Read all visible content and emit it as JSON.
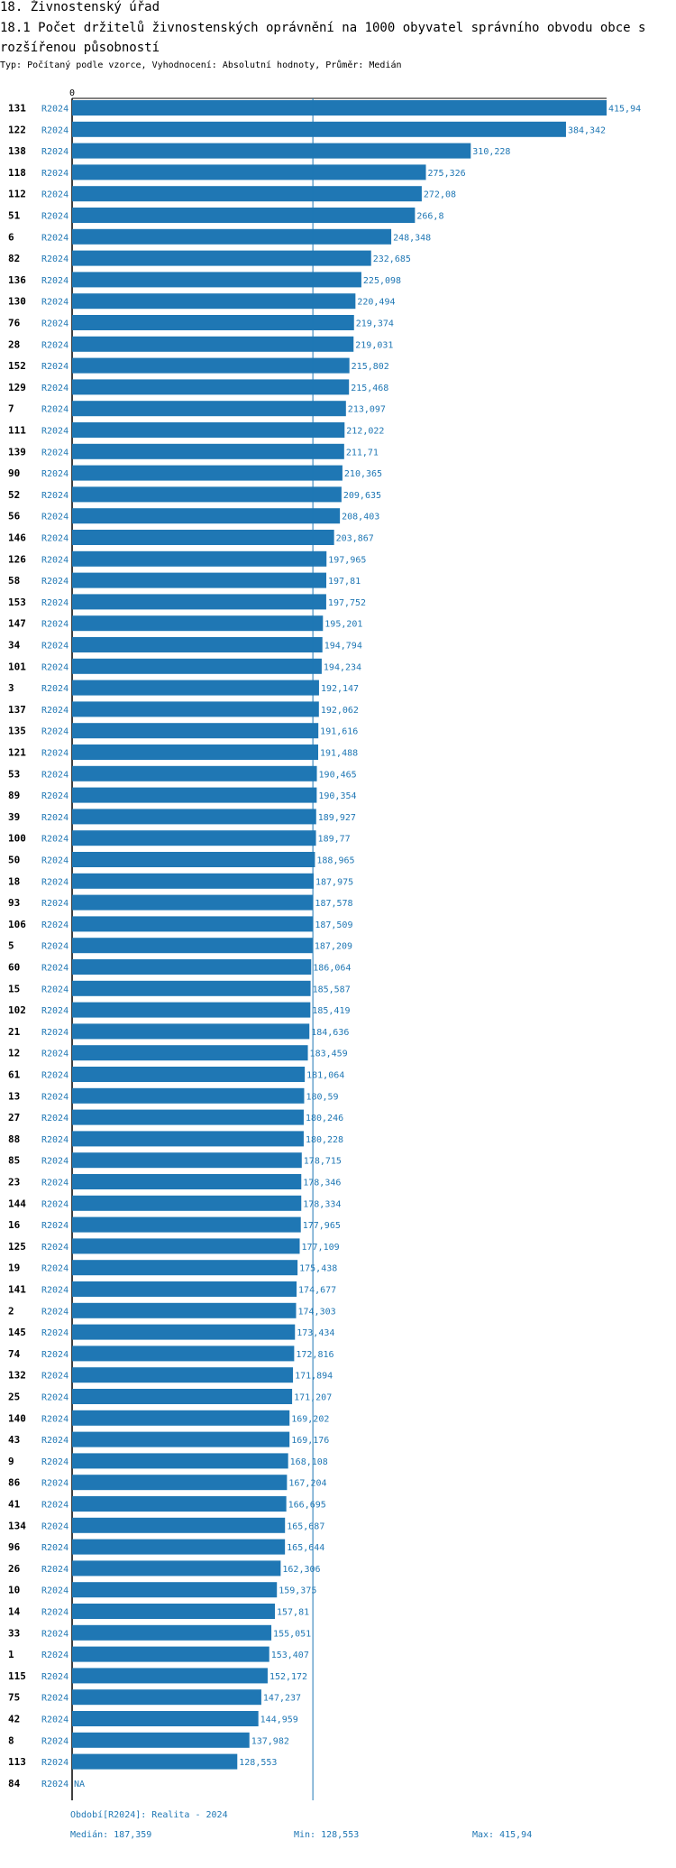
{
  "header": {
    "title": "18. Živnostenský úřad",
    "subtitle": "18.1 Počet držitelů živnostenských oprávnění na 1000 obyvatel správního obvodu obce s rozšířenou působností",
    "meta": "Typ: Počítaný podle vzorce, Vyhodnocení: Absolutní hodnoty, Průměr: Medián"
  },
  "chart_data": {
    "type": "bar",
    "orientation": "horizontal",
    "axis_zero_label": "0",
    "xlim": [
      0,
      415.94
    ],
    "median": 187.359,
    "rows": [
      {
        "id": "131",
        "period": "R2024",
        "value": 415.94,
        "label": "415,94"
      },
      {
        "id": "122",
        "period": "R2024",
        "value": 384.342,
        "label": "384,342"
      },
      {
        "id": "138",
        "period": "R2024",
        "value": 310.228,
        "label": "310,228"
      },
      {
        "id": "118",
        "period": "R2024",
        "value": 275.326,
        "label": "275,326"
      },
      {
        "id": "112",
        "period": "R2024",
        "value": 272.08,
        "label": "272,08"
      },
      {
        "id": "51",
        "period": "R2024",
        "value": 266.8,
        "label": "266,8"
      },
      {
        "id": "6",
        "period": "R2024",
        "value": 248.348,
        "label": "248,348"
      },
      {
        "id": "82",
        "period": "R2024",
        "value": 232.685,
        "label": "232,685"
      },
      {
        "id": "136",
        "period": "R2024",
        "value": 225.098,
        "label": "225,098"
      },
      {
        "id": "130",
        "period": "R2024",
        "value": 220.494,
        "label": "220,494"
      },
      {
        "id": "76",
        "period": "R2024",
        "value": 219.374,
        "label": "219,374"
      },
      {
        "id": "28",
        "period": "R2024",
        "value": 219.031,
        "label": "219,031"
      },
      {
        "id": "152",
        "period": "R2024",
        "value": 215.802,
        "label": "215,802"
      },
      {
        "id": "129",
        "period": "R2024",
        "value": 215.468,
        "label": "215,468"
      },
      {
        "id": "7",
        "period": "R2024",
        "value": 213.097,
        "label": "213,097"
      },
      {
        "id": "111",
        "period": "R2024",
        "value": 212.022,
        "label": "212,022"
      },
      {
        "id": "139",
        "period": "R2024",
        "value": 211.71,
        "label": "211,71"
      },
      {
        "id": "90",
        "period": "R2024",
        "value": 210.365,
        "label": "210,365"
      },
      {
        "id": "52",
        "period": "R2024",
        "value": 209.635,
        "label": "209,635"
      },
      {
        "id": "56",
        "period": "R2024",
        "value": 208.403,
        "label": "208,403"
      },
      {
        "id": "146",
        "period": "R2024",
        "value": 203.867,
        "label": "203,867"
      },
      {
        "id": "126",
        "period": "R2024",
        "value": 197.965,
        "label": "197,965"
      },
      {
        "id": "58",
        "period": "R2024",
        "value": 197.81,
        "label": "197,81"
      },
      {
        "id": "153",
        "period": "R2024",
        "value": 197.752,
        "label": "197,752"
      },
      {
        "id": "147",
        "period": "R2024",
        "value": 195.201,
        "label": "195,201"
      },
      {
        "id": "34",
        "period": "R2024",
        "value": 194.794,
        "label": "194,794"
      },
      {
        "id": "101",
        "period": "R2024",
        "value": 194.234,
        "label": "194,234"
      },
      {
        "id": "3",
        "period": "R2024",
        "value": 192.147,
        "label": "192,147"
      },
      {
        "id": "137",
        "period": "R2024",
        "value": 192.062,
        "label": "192,062"
      },
      {
        "id": "135",
        "period": "R2024",
        "value": 191.616,
        "label": "191,616"
      },
      {
        "id": "121",
        "period": "R2024",
        "value": 191.488,
        "label": "191,488"
      },
      {
        "id": "53",
        "period": "R2024",
        "value": 190.465,
        "label": "190,465"
      },
      {
        "id": "89",
        "period": "R2024",
        "value": 190.354,
        "label": "190,354"
      },
      {
        "id": "39",
        "period": "R2024",
        "value": 189.927,
        "label": "189,927"
      },
      {
        "id": "100",
        "period": "R2024",
        "value": 189.77,
        "label": "189,77"
      },
      {
        "id": "50",
        "period": "R2024",
        "value": 188.965,
        "label": "188,965"
      },
      {
        "id": "18",
        "period": "R2024",
        "value": 187.975,
        "label": "187,975"
      },
      {
        "id": "93",
        "period": "R2024",
        "value": 187.578,
        "label": "187,578"
      },
      {
        "id": "106",
        "period": "R2024",
        "value": 187.509,
        "label": "187,509"
      },
      {
        "id": "5",
        "period": "R2024",
        "value": 187.209,
        "label": "187,209"
      },
      {
        "id": "60",
        "period": "R2024",
        "value": 186.064,
        "label": "186,064"
      },
      {
        "id": "15",
        "period": "R2024",
        "value": 185.587,
        "label": "185,587"
      },
      {
        "id": "102",
        "period": "R2024",
        "value": 185.419,
        "label": "185,419"
      },
      {
        "id": "21",
        "period": "R2024",
        "value": 184.636,
        "label": "184,636"
      },
      {
        "id": "12",
        "period": "R2024",
        "value": 183.459,
        "label": "183,459"
      },
      {
        "id": "61",
        "period": "R2024",
        "value": 181.064,
        "label": "181,064"
      },
      {
        "id": "13",
        "period": "R2024",
        "value": 180.59,
        "label": "180,59"
      },
      {
        "id": "27",
        "period": "R2024",
        "value": 180.246,
        "label": "180,246"
      },
      {
        "id": "88",
        "period": "R2024",
        "value": 180.228,
        "label": "180,228"
      },
      {
        "id": "85",
        "period": "R2024",
        "value": 178.715,
        "label": "178,715"
      },
      {
        "id": "23",
        "period": "R2024",
        "value": 178.346,
        "label": "178,346"
      },
      {
        "id": "144",
        "period": "R2024",
        "value": 178.334,
        "label": "178,334"
      },
      {
        "id": "16",
        "period": "R2024",
        "value": 177.965,
        "label": "177,965"
      },
      {
        "id": "125",
        "period": "R2024",
        "value": 177.109,
        "label": "177,109"
      },
      {
        "id": "19",
        "period": "R2024",
        "value": 175.438,
        "label": "175,438"
      },
      {
        "id": "141",
        "period": "R2024",
        "value": 174.677,
        "label": "174,677"
      },
      {
        "id": "2",
        "period": "R2024",
        "value": 174.303,
        "label": "174,303"
      },
      {
        "id": "145",
        "period": "R2024",
        "value": 173.434,
        "label": "173,434"
      },
      {
        "id": "74",
        "period": "R2024",
        "value": 172.816,
        "label": "172,816"
      },
      {
        "id": "132",
        "period": "R2024",
        "value": 171.894,
        "label": "171,894"
      },
      {
        "id": "25",
        "period": "R2024",
        "value": 171.207,
        "label": "171,207"
      },
      {
        "id": "140",
        "period": "R2024",
        "value": 169.202,
        "label": "169,202"
      },
      {
        "id": "43",
        "period": "R2024",
        "value": 169.176,
        "label": "169,176"
      },
      {
        "id": "9",
        "period": "R2024",
        "value": 168.108,
        "label": "168,108"
      },
      {
        "id": "86",
        "period": "R2024",
        "value": 167.204,
        "label": "167,204"
      },
      {
        "id": "41",
        "period": "R2024",
        "value": 166.695,
        "label": "166,695"
      },
      {
        "id": "134",
        "period": "R2024",
        "value": 165.687,
        "label": "165,687"
      },
      {
        "id": "96",
        "period": "R2024",
        "value": 165.644,
        "label": "165,644"
      },
      {
        "id": "26",
        "period": "R2024",
        "value": 162.306,
        "label": "162,306"
      },
      {
        "id": "10",
        "period": "R2024",
        "value": 159.375,
        "label": "159,375"
      },
      {
        "id": "14",
        "period": "R2024",
        "value": 157.81,
        "label": "157,81"
      },
      {
        "id": "33",
        "period": "R2024",
        "value": 155.051,
        "label": "155,051"
      },
      {
        "id": "1",
        "period": "R2024",
        "value": 153.407,
        "label": "153,407"
      },
      {
        "id": "115",
        "period": "R2024",
        "value": 152.172,
        "label": "152,172"
      },
      {
        "id": "75",
        "period": "R2024",
        "value": 147.237,
        "label": "147,237"
      },
      {
        "id": "42",
        "period": "R2024",
        "value": 144.959,
        "label": "144,959"
      },
      {
        "id": "8",
        "period": "R2024",
        "value": 137.982,
        "label": "137,982"
      },
      {
        "id": "113",
        "period": "R2024",
        "value": 128.553,
        "label": "128,553"
      },
      {
        "id": "84",
        "period": "R2024",
        "value": null,
        "label": "NA"
      }
    ]
  },
  "footer": {
    "period_text": "Období[R2024]: Realita - 2024",
    "median_text": "Medián: 187,359",
    "min_text": "Min: 128,553",
    "max_text": "Max: 415,94"
  },
  "colors": {
    "bar": "#1f77b4",
    "text": "#000000"
  }
}
